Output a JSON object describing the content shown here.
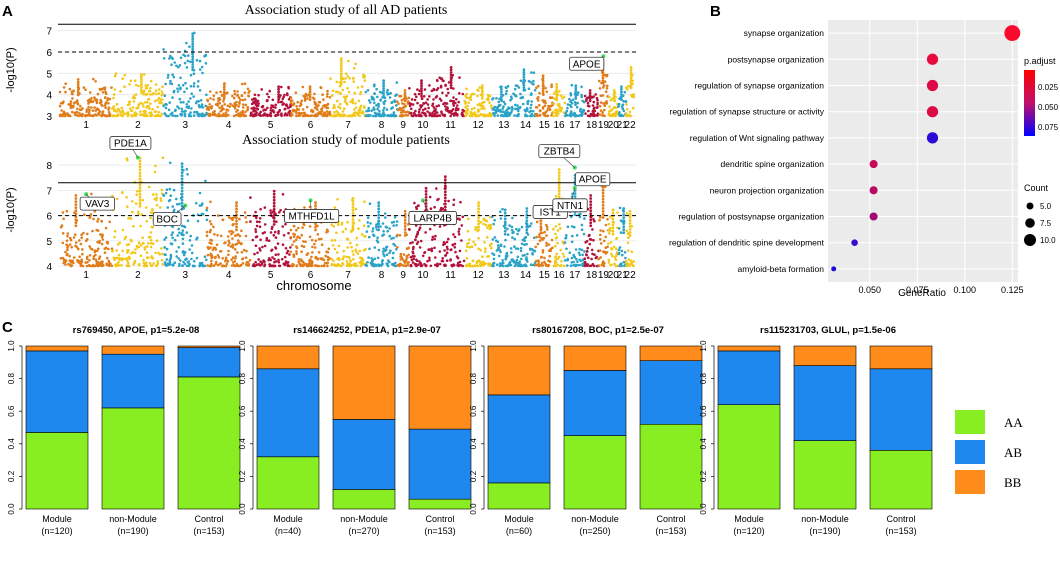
{
  "panel_labels": {
    "a": "A",
    "b": "B",
    "c": "C"
  },
  "chart_data": [
    {
      "type": "scatter",
      "id": "manhattan-all",
      "title": "Association study of all AD patients",
      "ylabel": "-log10(P)",
      "xlabel": "",
      "ylim": [
        3,
        7.5
      ],
      "yticks": [
        3,
        4,
        5,
        6,
        7
      ],
      "genome_wide_line": 7.3,
      "suggestive_line": 6.0,
      "chromosomes": [
        "1",
        "2",
        "3",
        "4",
        "5",
        "6",
        "7",
        "8",
        "9",
        "10",
        "11",
        "12",
        "13",
        "14",
        "15",
        "16",
        "17",
        "18",
        "19",
        "20",
        "21",
        "22"
      ],
      "chrom_peaks": [
        4.8,
        5.0,
        6.95,
        4.6,
        4.4,
        4.4,
        5.7,
        4.7,
        4.3,
        4.7,
        5.4,
        4.5,
        4.4,
        5.2,
        4.9,
        4.6,
        4.5,
        4.3,
        5.8,
        4.3,
        4.4,
        5.4
      ],
      "annotations": [
        {
          "label": "APOE",
          "chrom": "19",
          "y": 5.8
        }
      ]
    },
    {
      "type": "scatter",
      "id": "manhattan-module",
      "title": "Association study of module patients",
      "ylabel": "-log10(P)",
      "xlabel": "chromosome",
      "ylim": [
        4,
        8.6
      ],
      "yticks": [
        4,
        5,
        6,
        7,
        8
      ],
      "genome_wide_line": 7.3,
      "suggestive_line": 6.0,
      "chromosomes": [
        "1",
        "2",
        "3",
        "4",
        "5",
        "6",
        "7",
        "8",
        "9",
        "10",
        "11",
        "12",
        "13",
        "14",
        "15",
        "16",
        "17",
        "18",
        "19",
        "20",
        "21",
        "22"
      ],
      "chrom_peaks": [
        6.9,
        8.3,
        8.1,
        6.6,
        7.0,
        6.6,
        6.7,
        6.6,
        6.2,
        7.2,
        7.6,
        6.6,
        6.3,
        6.4,
        6.4,
        7.9,
        7.7,
        6.9,
        7.5,
        6.3,
        6.4,
        6.2
      ],
      "annotations": [
        {
          "label": "PDE1A",
          "chrom": "2",
          "y": 8.3
        },
        {
          "label": "VAV3",
          "chrom": "1",
          "y": 6.85
        },
        {
          "label": "BOC",
          "chrom": "3",
          "y": 6.4
        },
        {
          "label": "MTHFD1L",
          "chrom": "6",
          "y": 6.6
        },
        {
          "label": "LARP4B",
          "chrom": "10",
          "y": 6.6
        },
        {
          "label": "IST1",
          "chrom": "16",
          "y": 6.6
        },
        {
          "label": "ZBTB4",
          "chrom": "17",
          "y": 7.9
        },
        {
          "label": "APOE",
          "chrom": "19",
          "y": 7.5
        },
        {
          "label": "NTN1",
          "chrom": "17",
          "y": 7.1
        }
      ]
    },
    {
      "type": "scatter",
      "id": "go-dotplot",
      "title": "",
      "xlabel": "GeneRatio",
      "ylabel": "",
      "xlim": [
        0.028,
        0.128
      ],
      "xticks": [
        0.05,
        0.075,
        0.1,
        0.125
      ],
      "xtick_labels": [
        "0.050",
        "0.075",
        "0.100",
        "0.125"
      ],
      "terms": [
        {
          "name": "synapse organization",
          "gene_ratio": 0.125,
          "count": 10,
          "p_adjust": 0.002
        },
        {
          "name": "postsynapse organization",
          "gene_ratio": 0.083,
          "count": 7,
          "p_adjust": 0.01
        },
        {
          "name": "regulation of synapse organization",
          "gene_ratio": 0.083,
          "count": 7,
          "p_adjust": 0.015
        },
        {
          "name": "regulation of synapse structure or activity",
          "gene_ratio": 0.083,
          "count": 7,
          "p_adjust": 0.015
        },
        {
          "name": "regulation of Wnt signaling pathway",
          "gene_ratio": 0.083,
          "count": 7,
          "p_adjust": 0.09
        },
        {
          "name": "dendritic spine organization",
          "gene_ratio": 0.052,
          "count": 5,
          "p_adjust": 0.025
        },
        {
          "name": "neuron projection organization",
          "gene_ratio": 0.052,
          "count": 5,
          "p_adjust": 0.03
        },
        {
          "name": "regulation of postsynapse organization",
          "gene_ratio": 0.052,
          "count": 5,
          "p_adjust": 0.04
        },
        {
          "name": "regulation of dendritic spine development",
          "gene_ratio": 0.042,
          "count": 4,
          "p_adjust": 0.085
        },
        {
          "name": "amyloid-beta formation",
          "gene_ratio": 0.031,
          "count": 3,
          "p_adjust": 0.095
        }
      ],
      "color_legend": {
        "title": "p.adjust",
        "ticks": [
          "0.025",
          "0.050",
          "0.075"
        ],
        "low_color": "#ff0000",
        "high_color": "#0000ff"
      },
      "size_legend": {
        "title": "Count",
        "values": [
          "5.0",
          "7.5",
          "10.0"
        ]
      }
    },
    {
      "type": "bar",
      "id": "genotype-bars",
      "stacked": true,
      "ylim": [
        0,
        1
      ],
      "yticks": [
        "0.0",
        "0.2",
        "0.4",
        "0.6",
        "0.8",
        "1.0"
      ],
      "legend": [
        {
          "label": "AA",
          "color": "#88ee22"
        },
        {
          "label": "AB",
          "color": "#1f88ee"
        },
        {
          "label": "BB",
          "color": "#ff8c1a"
        }
      ],
      "panels": [
        {
          "title": "rs769450, APOE, p1=5.2e-08",
          "categories": [
            "Module",
            "non-Module",
            "Control"
          ],
          "n": [
            "(n=120)",
            "(n=190)",
            "(n=153)"
          ],
          "series": [
            {
              "name": "AA",
              "values": [
                0.47,
                0.62,
                0.81
              ]
            },
            {
              "name": "AB",
              "values": [
                0.5,
                0.33,
                0.18
              ]
            },
            {
              "name": "BB",
              "values": [
                0.03,
                0.05,
                0.01
              ]
            }
          ]
        },
        {
          "title": "rs146624252, PDE1A, p1=2.9e-07",
          "categories": [
            "Module",
            "non-Module",
            "Control"
          ],
          "n": [
            "(n=40)",
            "(n=270)",
            "(n=153)"
          ],
          "series": [
            {
              "name": "AA",
              "values": [
                0.32,
                0.12,
                0.06
              ]
            },
            {
              "name": "AB",
              "values": [
                0.54,
                0.43,
                0.43
              ]
            },
            {
              "name": "BB",
              "values": [
                0.14,
                0.45,
                0.51
              ]
            }
          ]
        },
        {
          "title": "rs80167208, BOC, p1=2.5e-07",
          "categories": [
            "Module",
            "non-Module",
            "Control"
          ],
          "n": [
            "(n=60)",
            "(n=250)",
            "(n=153)"
          ],
          "series": [
            {
              "name": "AA",
              "values": [
                0.16,
                0.45,
                0.52
              ]
            },
            {
              "name": "AB",
              "values": [
                0.54,
                0.4,
                0.39
              ]
            },
            {
              "name": "BB",
              "values": [
                0.3,
                0.15,
                0.09
              ]
            }
          ]
        },
        {
          "title": "rs115231703, GLUL, p=1.5e-06",
          "categories": [
            "Module",
            "non-Module",
            "Control"
          ],
          "n": [
            "(n=120)",
            "(n=190)",
            "(n=153)"
          ],
          "series": [
            {
              "name": "AA",
              "values": [
                0.64,
                0.42,
                0.36
              ]
            },
            {
              "name": "AB",
              "values": [
                0.33,
                0.46,
                0.5
              ]
            },
            {
              "name": "BB",
              "values": [
                0.03,
                0.12,
                0.14
              ]
            }
          ]
        }
      ]
    }
  ]
}
